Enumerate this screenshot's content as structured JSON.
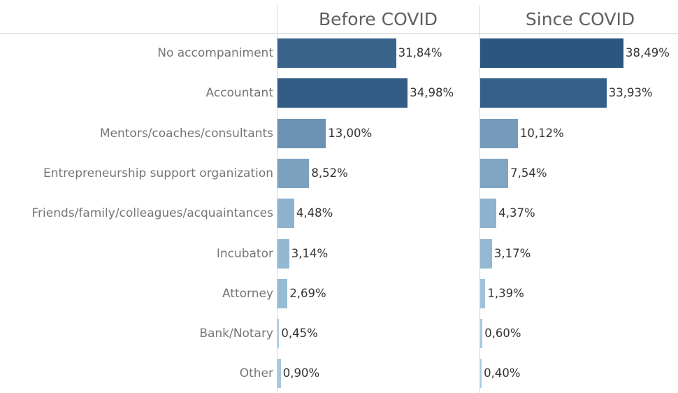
{
  "chart_data": {
    "type": "bar",
    "orientation": "horizontal",
    "categories": [
      "No accompaniment",
      "Accountant",
      "Mentors/coaches/consultants",
      "Entrepreneurship support organization",
      "Friends/family/colleagues/acquaintances",
      "Incubator",
      "Attorney",
      "Bank/Notary",
      "Other"
    ],
    "series": [
      {
        "name": "Before COVID",
        "values": [
          31.84,
          34.98,
          13.0,
          8.52,
          4.48,
          3.14,
          2.69,
          0.45,
          0.9
        ],
        "labels": [
          "31,84%",
          "34,98%",
          "13,00%",
          "8,52%",
          "4,48%",
          "3,14%",
          "2,69%",
          "0,45%",
          "0,90%"
        ]
      },
      {
        "name": "Since COVID",
        "values": [
          38.49,
          33.93,
          10.12,
          7.54,
          4.37,
          3.17,
          1.39,
          0.6,
          0.4
        ],
        "labels": [
          "38,49%",
          "33,93%",
          "10,12%",
          "7,54%",
          "4,37%",
          "3,17%",
          "1,39%",
          "0,60%",
          "0,40%"
        ]
      }
    ],
    "xlim": [
      0,
      38.49
    ],
    "grid": false,
    "legend": "none",
    "color_scale": {
      "low": "#b3d4ea",
      "high": "#2b5680"
    }
  }
}
